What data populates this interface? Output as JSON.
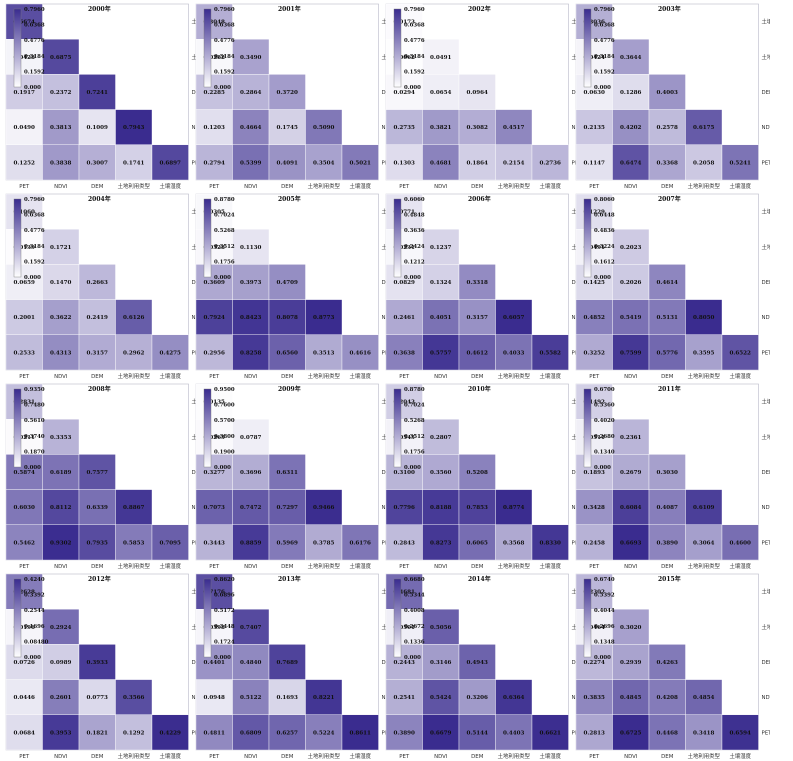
{
  "variables": [
    "PET",
    "NDVI",
    "DEM",
    "土地利用类型",
    "土壤湿度"
  ],
  "colors": {
    "low": "#ffffff",
    "high": "#3a2c8f",
    "grid": "#e8e8f0"
  },
  "chart_data": [
    {
      "type": "heatmap",
      "title": "2000年",
      "scale_max": 0.796,
      "scale_ticks": [
        "0.7960",
        "0.6368",
        "0.4776",
        "0.3184",
        "0.1592",
        "0.000"
      ],
      "rows": [
        [
          "0.6674"
        ],
        [
          "0.0428",
          "0.6875"
        ],
        [
          "0.1917",
          "0.2372",
          "0.7241"
        ],
        [
          "0.0490",
          "0.3813",
          "0.1009",
          "0.7943"
        ],
        [
          "0.1252",
          "0.3838",
          "0.3007",
          "0.1741",
          "0.6897"
        ]
      ]
    },
    {
      "type": "heatmap",
      "title": "2001年",
      "scale_max": 0.796,
      "scale_ticks": [
        "0.7960",
        "0.6368",
        "0.4776",
        "0.3184",
        "0.1592",
        "0.000"
      ],
      "rows": [
        [
          "0.3048"
        ],
        [
          "0.0282",
          "0.3490"
        ],
        [
          "0.2285",
          "0.2864",
          "0.3720"
        ],
        [
          "0.1203",
          "0.4664",
          "0.1745",
          "0.5090"
        ],
        [
          "0.2794",
          "0.5399",
          "0.4091",
          "0.3504",
          "0.5021"
        ]
      ]
    },
    {
      "type": "heatmap",
      "title": "2002年",
      "scale_max": 0.796,
      "scale_ticks": [
        "0.7960",
        "0.6368",
        "0.4776",
        "0.3184",
        "0.1592",
        "0.000"
      ],
      "rows": [
        [
          "0.0173"
        ],
        [
          "0.0062",
          "0.0491"
        ],
        [
          "0.0294",
          "0.0654",
          "0.0964"
        ],
        [
          "0.2735",
          "0.3821",
          "0.3082",
          "0.4517"
        ],
        [
          "0.1303",
          "0.4681",
          "0.1864",
          "0.2154",
          "0.2736"
        ]
      ]
    },
    {
      "type": "heatmap",
      "title": "2003年",
      "scale_max": 0.796,
      "scale_ticks": [
        "0.7960",
        "0.6368",
        "0.4776",
        "0.3184",
        "0.1592",
        "0.000"
      ],
      "rows": [
        [
          "0.3036"
        ],
        [
          "0.0424",
          "0.3644"
        ],
        [
          "0.0630",
          "0.1286",
          "0.4003"
        ],
        [
          "0.2135",
          "0.4202",
          "0.2578",
          "0.6175"
        ],
        [
          "0.1147",
          "0.6474",
          "0.3368",
          "0.2058",
          "0.5241"
        ]
      ]
    },
    {
      "type": "heatmap",
      "title": "2004年",
      "scale_max": 0.796,
      "scale_ticks": [
        "0.7960",
        "0.6368",
        "0.4776",
        "0.3184",
        "0.1592",
        "0.000"
      ],
      "rows": [
        [
          "0.1060"
        ],
        [
          "0.0139",
          "0.1721"
        ],
        [
          "0.0659",
          "0.1470",
          "0.2663"
        ],
        [
          "0.2001",
          "0.3622",
          "0.2419",
          "0.6126"
        ],
        [
          "0.2533",
          "0.4313",
          "0.3157",
          "0.2962",
          "0.4275"
        ]
      ]
    },
    {
      "type": "heatmap",
      "title": "2005年",
      "scale_max": 0.878,
      "scale_ticks": [
        "0.8780",
        "0.7024",
        "0.5268",
        "0.3512",
        "0.1756",
        "0.000"
      ],
      "rows": [
        [
          "0.0305"
        ],
        [
          "0.0328",
          "0.1130"
        ],
        [
          "0.3609",
          "0.3973",
          "0.4709"
        ],
        [
          "0.7924",
          "0.8423",
          "0.8078",
          "0.8773"
        ],
        [
          "0.2956",
          "0.8258",
          "0.6560",
          "0.3513",
          "0.4616"
        ]
      ]
    },
    {
      "type": "heatmap",
      "title": "2006年",
      "scale_max": 0.606,
      "scale_ticks": [
        "0.6060",
        "0.4848",
        "0.3636",
        "0.2424",
        "0.1212",
        "0.000"
      ],
      "rows": [
        [
          "0.0771"
        ],
        [
          "0.0231",
          "0.1237"
        ],
        [
          "0.0829",
          "0.1324",
          "0.3318"
        ],
        [
          "0.2461",
          "0.4051",
          "0.3157",
          "0.6057"
        ],
        [
          "0.3638",
          "0.5757",
          "0.4612",
          "0.4033",
          "0.5582"
        ]
      ]
    },
    {
      "type": "heatmap",
      "title": "2007年",
      "scale_max": 0.806,
      "scale_ticks": [
        "0.8060",
        "0.6448",
        "0.4836",
        "0.3224",
        "0.1612",
        "0.000"
      ],
      "rows": [
        [
          "0.1229"
        ],
        [
          "0.0491",
          "0.2023"
        ],
        [
          "0.1425",
          "0.2026",
          "0.4614"
        ],
        [
          "0.4852",
          "0.5419",
          "0.5131",
          "0.8050"
        ],
        [
          "0.3252",
          "0.7599",
          "0.5776",
          "0.3595",
          "0.6522"
        ]
      ]
    },
    {
      "type": "heatmap",
      "title": "2008年",
      "scale_max": 0.935,
      "scale_ticks": [
        "0.9350",
        "0.7480",
        "0.5610",
        "0.3740",
        "0.1870",
        "0.000"
      ],
      "rows": [
        [
          "0.2831"
        ],
        [
          "0.0211",
          "0.3353"
        ],
        [
          "0.5874",
          "0.6189",
          "0.7577"
        ],
        [
          "0.6030",
          "0.8112",
          "0.6339",
          "0.8867"
        ],
        [
          "0.5462",
          "0.9302",
          "0.7935",
          "0.5853",
          "0.7095"
        ]
      ]
    },
    {
      "type": "heatmap",
      "title": "2009年",
      "scale_max": 0.95,
      "scale_ticks": [
        "0.9500",
        "0.7600",
        "0.5700",
        "0.3800",
        "0.1900",
        "0.000"
      ],
      "rows": [
        [
          "0.0135"
        ],
        [
          "0.0265",
          "0.0787"
        ],
        [
          "0.3277",
          "0.3696",
          "0.6311"
        ],
        [
          "0.7073",
          "0.7472",
          "0.7297",
          "0.9466"
        ],
        [
          "0.3443",
          "0.8859",
          "0.5969",
          "0.3785",
          "0.6176"
        ]
      ]
    },
    {
      "type": "heatmap",
      "title": "2010年",
      "scale_max": 0.878,
      "scale_ticks": [
        "0.8780",
        "0.7024",
        "0.5268",
        "0.3512",
        "0.1756",
        "0.000"
      ],
      "rows": [
        [
          "0.2043"
        ],
        [
          "0.0545",
          "0.2807"
        ],
        [
          "0.3100",
          "0.3560",
          "0.5208"
        ],
        [
          "0.7796",
          "0.8188",
          "0.7853",
          "0.8774"
        ],
        [
          "0.2843",
          "0.8273",
          "0.6065",
          "0.3568",
          "0.8330"
        ]
      ]
    },
    {
      "type": "heatmap",
      "title": "2011年",
      "scale_max": 0.67,
      "scale_ticks": [
        "0.6700",
        "0.5360",
        "0.4020",
        "0.2680",
        "0.1340",
        "0.000"
      ],
      "rows": [
        [
          "0.1492"
        ],
        [
          "0.0511",
          "0.2361"
        ],
        [
          "0.1893",
          "0.2679",
          "0.3030"
        ],
        [
          "0.3428",
          "0.6084",
          "0.4087",
          "0.6109"
        ],
        [
          "0.2458",
          "0.6693",
          "0.3890",
          "0.3064",
          "0.4600"
        ]
      ]
    },
    {
      "type": "heatmap",
      "title": "2012年",
      "scale_max": 0.424,
      "scale_ticks": [
        "0.4240",
        "0.3392",
        "0.2544",
        "0.1696",
        "0.08480",
        "0.000"
      ],
      "rows": [
        [
          "0.2628"
        ],
        [
          "0.0196",
          "0.2924"
        ],
        [
          "0.0726",
          "0.0989",
          "0.3933"
        ],
        [
          "0.0446",
          "0.2601",
          "0.0773",
          "0.3566"
        ],
        [
          "0.0684",
          "0.3953",
          "0.1821",
          "0.1292",
          "0.4229"
        ]
      ]
    },
    {
      "type": "heatmap",
      "title": "2013年",
      "scale_max": 0.862,
      "scale_ticks": [
        "0.8620",
        "0.6896",
        "0.5172",
        "0.3448",
        "0.1724",
        "0.000"
      ],
      "rows": [
        [
          "0.7176"
        ],
        [
          "0.0398",
          "0.7407"
        ],
        [
          "0.4401",
          "0.4840",
          "0.7689"
        ],
        [
          "0.0948",
          "0.5122",
          "0.1693",
          "0.8221"
        ],
        [
          "0.4811",
          "0.6809",
          "0.6257",
          "0.5224",
          "0.8611"
        ]
      ]
    },
    {
      "type": "heatmap",
      "title": "2014年",
      "scale_max": 0.668,
      "scale_ticks": [
        "0.6680",
        "0.5344",
        "0.4008",
        "0.2672",
        "0.1336",
        "0.000"
      ],
      "rows": [
        [
          "0.4681"
        ],
        [
          "0.0501",
          "0.5056"
        ],
        [
          "0.2443",
          "0.3146",
          "0.4943"
        ],
        [
          "0.2541",
          "0.5424",
          "0.3206",
          "0.6364"
        ],
        [
          "0.3890",
          "0.6679",
          "0.5144",
          "0.4403",
          "0.6621"
        ]
      ]
    },
    {
      "type": "heatmap",
      "title": "2015年",
      "scale_max": 0.674,
      "scale_ticks": [
        "0.6740",
        "0.5392",
        "0.4044",
        "0.2696",
        "0.1348",
        "0.000"
      ],
      "rows": [
        [
          "0.2302"
        ],
        [
          "0.0464",
          "0.3020"
        ],
        [
          "0.2274",
          "0.2939",
          "0.4263"
        ],
        [
          "0.3835",
          "0.4845",
          "0.4208",
          "0.4854"
        ],
        [
          "0.2813",
          "0.6725",
          "0.4468",
          "0.3418",
          "0.6594"
        ]
      ]
    }
  ]
}
